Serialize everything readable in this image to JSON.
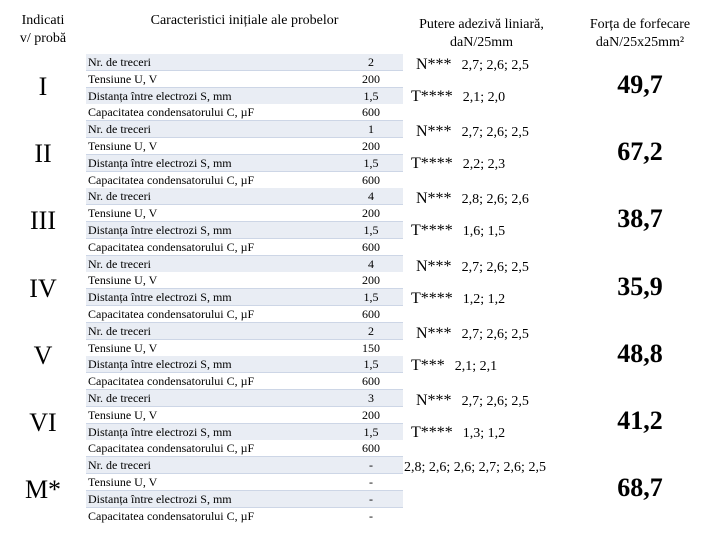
{
  "header": {
    "col1_line1": "Indicati",
    "col1_line2": "v/ probă",
    "col2": "Caracteristici inițiale ale probelor",
    "col3_line1": "Putere adezivă liniară,",
    "col3_line2": "daN/25mm",
    "col4_line1": "Forța de forfecare",
    "col4_line2": "daN/25x25mm²"
  },
  "labels": [
    "Nr. de treceri",
    "Tensiune U, V",
    "Distanța între electrozi S, mm",
    "Capacitatea condensatorului C, µF"
  ],
  "samples": [
    {
      "id": "I",
      "values": [
        "2",
        "200",
        "1,5",
        "600"
      ],
      "r1_kind": "N***",
      "r1_vals": "2,7; 2,6; 2,5",
      "r2_kind": "T****",
      "r2_vals": "2,1; 2,0",
      "force": "49,7"
    },
    {
      "id": "II",
      "values": [
        "1",
        "200",
        "1,5",
        "600"
      ],
      "r1_kind": "N***",
      "r1_vals": "2,7; 2,6; 2,5",
      "r2_kind": "T****",
      "r2_vals": "2,2; 2,3",
      "force": "67,2"
    },
    {
      "id": "III",
      "values": [
        "4",
        "200",
        "1,5",
        "600"
      ],
      "r1_kind": "N***",
      "r1_vals": "2,8; 2,6; 2,6",
      "r2_kind": "T****",
      "r2_vals": "1,6; 1,5",
      "force": "38,7"
    },
    {
      "id": "IV",
      "values": [
        "4",
        "200",
        "1,5",
        "600"
      ],
      "r1_kind": "N***",
      "r1_vals": "2,7; 2,6; 2,5",
      "r2_kind": "T****",
      "r2_vals": "1,2; 1,2",
      "force": "35,9"
    },
    {
      "id": "V",
      "values": [
        "2",
        "150",
        "1,5",
        "600"
      ],
      "r1_kind": "N***",
      "r1_vals": "2,7; 2,6; 2,5",
      "r2_kind": "T***",
      "r2_vals": "2,1; 2,1",
      "force": "48,8"
    },
    {
      "id": "VI",
      "values": [
        "3",
        "200",
        "1,5",
        "600"
      ],
      "r1_kind": "N***",
      "r1_vals": "2,7; 2,6; 2,5",
      "r2_kind": "T****",
      "r2_vals": "1,3; 1,2",
      "force": "41,2"
    },
    {
      "id": "M*",
      "values": [
        "-",
        "-",
        "-",
        "-"
      ],
      "adhesive_text": "2,8; 2,6; 2,6; 2,7; 2,6; 2,5",
      "force": "68,7"
    }
  ]
}
